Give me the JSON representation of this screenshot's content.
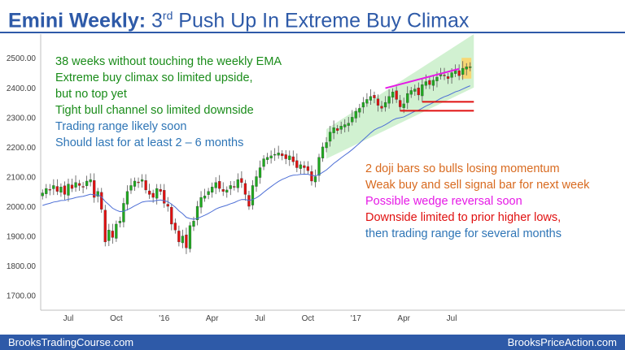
{
  "title": {
    "bold": "Emini Weekly:",
    "pre": " 3",
    "sup": "rd",
    "post": " Push Up In Extreme Buy Climax"
  },
  "annotations": [
    {
      "text": "38 weeks without touching the weekly EMA",
      "color": "#1a8c1a"
    },
    {
      "text": "Extreme buy climax so limited upside,",
      "color": "#1a8c1a"
    },
    {
      "text": "but no top yet",
      "color": "#1a8c1a"
    },
    {
      "text": "Tight bull channel so limited downside",
      "color": "#1a8c1a"
    },
    {
      "text": "Trading range likely soon",
      "color": "#2e75b6"
    },
    {
      "text": "Should last for at least 2 – 6 months",
      "color": "#2e75b6"
    },
    {
      "text": "2 doji bars so bulls losing momentum",
      "color": "#d86a1f"
    },
    {
      "text": "Weak buy and sell signal bar for next week",
      "color": "#d86a1f"
    },
    {
      "text": "Possible wedge reversal soon",
      "color": "#e619e6"
    },
    {
      "text": "Downside limited to prior higher lows,",
      "color": "#e01010"
    },
    {
      "text": "then trading range for several months",
      "color": "#2e75b6"
    }
  ],
  "footer": {
    "left": "BrooksTradingCourse.com",
    "right": "BrooksPriceAction.com"
  },
  "colors": {
    "bull": "#1faa1f",
    "bear": "#e01010",
    "ema": "#4d6fd6",
    "channel": "#c9eec9",
    "wedge": "#e619e6",
    "support": "#e01010",
    "signal": "#f7d774",
    "accent": "#2e5aa8"
  },
  "chart_data": {
    "type": "candlestick",
    "title": "Emini Weekly",
    "ylim": [
      1650,
      2580
    ],
    "yticks": [
      1700,
      1800,
      1900,
      2000,
      2100,
      2200,
      2300,
      2400,
      2500
    ],
    "ytick_labels": [
      "1700.00",
      "1800.00",
      "1900.00",
      "2000.00",
      "2100.00",
      "2200.00",
      "2300.00",
      "2400.00",
      "2500.00"
    ],
    "xticks": [
      {
        "label": "Jul",
        "week": 7
      },
      {
        "label": "Oct",
        "week": 20
      },
      {
        "label": "'16",
        "week": 33
      },
      {
        "label": "Apr",
        "week": 46
      },
      {
        "label": "Jul",
        "week": 59
      },
      {
        "label": "Oct",
        "week": 72
      },
      {
        "label": "'17",
        "week": 85
      },
      {
        "label": "Apr",
        "week": 98
      },
      {
        "label": "Jul",
        "week": 111
      }
    ],
    "weeks": 117,
    "ema_lookback_weeks": 38,
    "channel": {
      "start_week": 77,
      "end_week": 117,
      "lower_start": 2160,
      "lower_end": 2400,
      "upper_start": 2260,
      "upper_end": 2580
    },
    "wedge_line": {
      "start_week": 93,
      "end_week": 113,
      "start_price": 2398,
      "end_price": 2463
    },
    "support_lines": [
      {
        "start_week": 103,
        "end_week": 117,
        "price": 2352
      },
      {
        "start_week": 97,
        "end_week": 117,
        "price": 2322
      }
    ],
    "signal_bar_week": 115,
    "series": [
      {
        "name": "close",
        "values": [
          2045,
          2060,
          2055,
          2070,
          2050,
          2065,
          2040,
          2075,
          2060,
          2080,
          2070,
          2065,
          2085,
          2090,
          2030,
          2050,
          1990,
          1880,
          1920,
          1895,
          1940,
          1950,
          2010,
          2050,
          2070,
          2085,
          2080,
          2090,
          2055,
          2040,
          2030,
          2060,
          2050,
          2010,
          2000,
          1940,
          1920,
          1880,
          1900,
          1860,
          1935,
          1950,
          2000,
          2030,
          2035,
          2050,
          2065,
          2080,
          2060,
          2050,
          2055,
          2070,
          2065,
          2090,
          2080,
          2040,
          2000,
          2070,
          2100,
          2130,
          2160,
          2165,
          2170,
          2175,
          2180,
          2170,
          2160,
          2170,
          2150,
          2130,
          2140,
          2130,
          2120,
          2085,
          2100,
          2165,
          2200,
          2215,
          2250,
          2265,
          2255,
          2270,
          2275,
          2280,
          2300,
          2320,
          2330,
          2350,
          2360,
          2370,
          2365,
          2340,
          2330,
          2350,
          2370,
          2385,
          2360,
          2335,
          2345,
          2380,
          2390,
          2395,
          2375,
          2410,
          2420,
          2410,
          2425,
          2435,
          2445,
          2440,
          2430,
          2450,
          2460,
          2440,
          2465,
          2470,
          2470
        ]
      }
    ]
  }
}
